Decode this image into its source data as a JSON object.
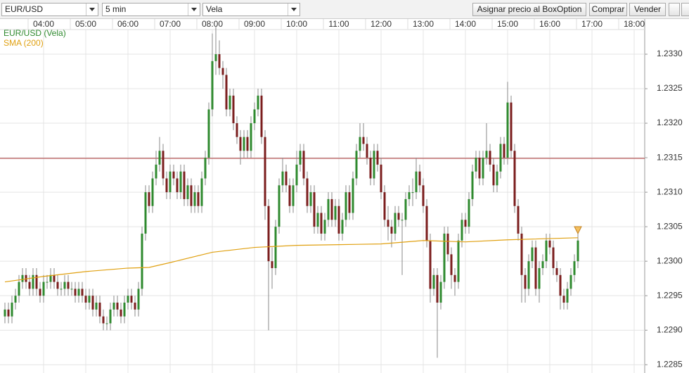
{
  "toolbar": {
    "symbol": "EUR/USD",
    "interval": "5 min",
    "chart_style": "Vela",
    "buttons": [
      "Asignar precio al BoxOption",
      "Comprar",
      "Vender"
    ]
  },
  "chart_data": {
    "type": "candlestick",
    "xlim": [
      "02:58",
      "18:15"
    ],
    "xticks": [
      "04:00",
      "05:00",
      "06:00",
      "07:00",
      "08:00",
      "09:00",
      "10:00",
      "11:00",
      "12:00",
      "13:00",
      "14:00",
      "15:00",
      "16:00",
      "17:00",
      "18:00"
    ],
    "ylim": [
      1.22838,
      1.23351
    ],
    "yticks": [
      1.2285,
      {
        "value": 1.229,
        "label": "1.2290"
      },
      1.2295,
      {
        "value": 1.23,
        "label": "1.2300"
      },
      1.2305,
      {
        "value": 1.231,
        "label": "1.2310"
      },
      1.2315,
      {
        "value": 1.232,
        "label": "1.2320"
      },
      1.2325,
      {
        "value": 1.233,
        "label": "1.2330"
      }
    ],
    "grid": true,
    "hline": {
      "value": 1.23149,
      "color": "#a83232"
    },
    "x": [
      "03:05",
      "03:10",
      "03:15",
      "03:20",
      "03:25",
      "03:30",
      "03:35",
      "03:40",
      "03:45",
      "03:50",
      "03:55",
      "04:00",
      "04:05",
      "04:10",
      "04:15",
      "04:20",
      "04:25",
      "04:30",
      "04:35",
      "04:40",
      "04:45",
      "04:50",
      "04:55",
      "05:00",
      "05:05",
      "05:10",
      "05:15",
      "05:20",
      "05:25",
      "05:30",
      "05:35",
      "05:40",
      "05:45",
      "05:50",
      "05:55",
      "06:00",
      "06:05",
      "06:10",
      "06:15",
      "06:20",
      "06:25",
      "06:30",
      "06:35",
      "06:40",
      "06:45",
      "06:50",
      "06:55",
      "07:00",
      "07:05",
      "07:10",
      "07:15",
      "07:20",
      "07:25",
      "07:30",
      "07:35",
      "07:40",
      "07:45",
      "07:50",
      "07:55",
      "08:00",
      "08:05",
      "08:10",
      "08:15",
      "08:20",
      "08:25",
      "08:30",
      "08:35",
      "08:40",
      "08:45",
      "08:50",
      "08:55",
      "09:00",
      "09:05",
      "09:10",
      "09:15",
      "09:20",
      "09:25",
      "09:30",
      "09:35",
      "09:40",
      "09:45",
      "09:50",
      "09:55",
      "10:00",
      "10:05",
      "10:10",
      "10:15",
      "10:20",
      "10:25",
      "10:30",
      "10:35",
      "10:40",
      "10:45",
      "10:50",
      "10:55",
      "11:00",
      "11:05",
      "11:10",
      "11:15",
      "11:20",
      "11:25",
      "11:30",
      "11:35",
      "11:40",
      "11:45",
      "11:50",
      "11:55",
      "12:00",
      "12:05",
      "12:10",
      "12:15",
      "12:20",
      "12:25",
      "12:30",
      "12:35",
      "12:40",
      "12:45",
      "12:50",
      "12:55",
      "13:00",
      "13:05",
      "13:10",
      "13:15",
      "13:20",
      "13:25",
      "13:30",
      "13:35",
      "13:40",
      "13:45",
      "13:50",
      "13:55",
      "14:00",
      "14:05",
      "14:10",
      "14:15",
      "14:20",
      "14:25",
      "14:30",
      "14:35",
      "14:40",
      "14:45",
      "14:50",
      "14:55",
      "15:00",
      "15:05",
      "15:10",
      "15:15",
      "15:20",
      "15:25",
      "15:30",
      "15:35",
      "15:40",
      "15:45",
      "15:50",
      "15:55",
      "16:00",
      "16:05",
      "16:10",
      "16:15",
      "16:20",
      "16:25",
      "16:30",
      "16:35",
      "16:40"
    ],
    "series": [
      {
        "name": "EUR/USD (Vela)",
        "type": "candlestick",
        "color": "#2f8a2f",
        "down_color": "#7b1e1e",
        "open": [
          1.2292,
          1.2293,
          1.2292,
          1.2294,
          1.2295,
          1.2297,
          1.2298,
          1.2297,
          1.2296,
          1.2298,
          1.2296,
          1.2295,
          1.2297,
          1.2297,
          1.2298,
          1.2297,
          1.2296,
          1.2296,
          1.2297,
          1.2296,
          1.2296,
          1.2295,
          1.2296,
          1.2295,
          1.2294,
          1.2295,
          1.2293,
          1.2294,
          1.2292,
          1.2291,
          1.2291,
          1.2293,
          1.2294,
          1.2293,
          1.2292,
          1.2294,
          1.2295,
          1.2294,
          1.2293,
          1.2296,
          1.2304,
          1.231,
          1.2308,
          1.2312,
          1.2314,
          1.2316,
          1.2312,
          1.231,
          1.2313,
          1.2312,
          1.231,
          1.2313,
          1.2309,
          1.2311,
          1.2308,
          1.231,
          1.2308,
          1.2312,
          1.2315,
          1.2322,
          1.2329,
          1.233,
          1.2328,
          1.2327,
          1.2322,
          1.2324,
          1.232,
          1.2318,
          1.2316,
          1.2318,
          1.2316,
          1.232,
          1.2322,
          1.2324,
          1.2318,
          1.2308,
          1.23,
          1.2299,
          1.2305,
          1.2311,
          1.2313,
          1.2311,
          1.2308,
          1.2311,
          1.2314,
          1.2316,
          1.2312,
          1.2308,
          1.231,
          1.2305,
          1.2307,
          1.2304,
          1.2306,
          1.2309,
          1.2306,
          1.2308,
          1.2304,
          1.2306,
          1.231,
          1.2307,
          1.2312,
          1.2316,
          1.2318,
          1.2317,
          1.2315,
          1.2312,
          1.2316,
          1.2314,
          1.231,
          1.2306,
          1.2305,
          1.2304,
          1.2307,
          1.2306,
          1.2306,
          1.2309,
          1.231,
          1.231,
          1.2313,
          1.2311,
          1.2308,
          1.2303,
          1.2296,
          1.2298,
          1.2294,
          1.2297,
          1.2304,
          1.2301,
          1.2298,
          1.2297,
          1.2303,
          1.2306,
          1.2305,
          1.2309,
          1.2313,
          1.2315,
          1.2312,
          1.2315,
          1.2316,
          1.2314,
          1.2311,
          1.2313,
          1.2317,
          1.2315,
          1.2323,
          1.2316,
          1.2308,
          1.2304,
          1.2298,
          1.2296,
          1.23,
          1.2302,
          1.2296,
          1.2299,
          1.23,
          1.2303,
          1.2302,
          1.2299,
          1.2298,
          1.2295,
          1.2294,
          1.2296,
          1.2298,
          1.23
        ],
        "high": [
          1.2294,
          1.2294,
          1.2295,
          1.2296,
          1.2298,
          1.2299,
          1.2299,
          1.2298,
          1.2299,
          1.2299,
          1.2297,
          1.2298,
          1.2298,
          1.2299,
          1.2299,
          1.2298,
          1.2297,
          1.2298,
          1.2298,
          1.2297,
          1.2297,
          1.2297,
          1.2297,
          1.2296,
          1.2296,
          1.2296,
          1.2295,
          1.2295,
          1.2293,
          1.2292,
          1.2294,
          1.2295,
          1.2295,
          1.2294,
          1.2295,
          1.2296,
          1.2296,
          1.2295,
          1.2297,
          1.2305,
          1.2311,
          1.2311,
          1.2313,
          1.2316,
          1.2318,
          1.2317,
          1.2313,
          1.2314,
          1.2314,
          1.2313,
          1.2314,
          1.2314,
          1.2312,
          1.2312,
          1.2311,
          1.2311,
          1.2313,
          1.2316,
          1.2323,
          1.2333,
          1.2334,
          1.2332,
          1.2329,
          1.2328,
          1.2325,
          1.2325,
          1.2321,
          1.2319,
          1.2319,
          1.2319,
          1.2321,
          1.2323,
          1.2325,
          1.2325,
          1.2319,
          1.2309,
          1.2302,
          1.2306,
          1.2312,
          1.2315,
          1.2314,
          1.2312,
          1.2312,
          1.2316,
          1.2317,
          1.2317,
          1.2313,
          1.2311,
          1.2311,
          1.2308,
          1.2308,
          1.2307,
          1.231,
          1.231,
          1.2309,
          1.2309,
          1.2307,
          1.2311,
          1.2311,
          1.2313,
          1.2317,
          1.232,
          1.232,
          1.2318,
          1.2316,
          1.2317,
          1.2317,
          1.2315,
          1.2311,
          1.2308,
          1.2306,
          1.2308,
          1.2308,
          1.2307,
          1.231,
          1.2311,
          1.2312,
          1.2315,
          1.2314,
          1.2312,
          1.2309,
          1.2304,
          1.2299,
          1.2299,
          1.2298,
          1.2305,
          1.2305,
          1.2302,
          1.2299,
          1.2304,
          1.2307,
          1.2307,
          1.231,
          1.2314,
          1.2316,
          1.2316,
          1.2316,
          1.232,
          1.2317,
          1.2315,
          1.2314,
          1.2318,
          1.2318,
          1.2326,
          1.2324,
          1.2317,
          1.2309,
          1.2305,
          1.2299,
          1.2301,
          1.2303,
          1.2303,
          1.23,
          1.2301,
          1.2304,
          1.2304,
          1.2303,
          1.23,
          1.2299,
          1.2296,
          1.2297,
          1.2299,
          1.2301,
          1.2304
        ],
        "low": [
          1.2291,
          1.2291,
          1.2291,
          1.2293,
          1.2294,
          1.2296,
          1.2296,
          1.2295,
          1.2295,
          1.2295,
          1.2294,
          1.2294,
          1.2296,
          1.2296,
          1.2296,
          1.2295,
          1.2295,
          1.2295,
          1.2295,
          1.2295,
          1.2294,
          1.2294,
          1.2294,
          1.2293,
          1.2293,
          1.2292,
          1.2292,
          1.2291,
          1.229,
          1.229,
          1.229,
          1.2292,
          1.2292,
          1.2291,
          1.2291,
          1.2293,
          1.2293,
          1.2292,
          1.2292,
          1.2295,
          1.2303,
          1.2307,
          1.2307,
          1.2311,
          1.2313,
          1.2311,
          1.2309,
          1.2309,
          1.2311,
          1.2309,
          1.2309,
          1.2308,
          1.2308,
          1.2307,
          1.2307,
          1.2307,
          1.2307,
          1.2311,
          1.2314,
          1.2321,
          1.2327,
          1.2327,
          1.2325,
          1.2321,
          1.2321,
          1.2319,
          1.2317,
          1.2314,
          1.2315,
          1.2315,
          1.2315,
          1.2319,
          1.2321,
          1.2317,
          1.2306,
          1.229,
          1.2296,
          1.2298,
          1.2304,
          1.231,
          1.231,
          1.2307,
          1.2307,
          1.231,
          1.2313,
          1.2311,
          1.2307,
          1.2307,
          1.2304,
          1.2304,
          1.2303,
          1.2303,
          1.2305,
          1.2305,
          1.2305,
          1.2303,
          1.2303,
          1.2305,
          1.2306,
          1.2306,
          1.2311,
          1.2315,
          1.2316,
          1.2314,
          1.2311,
          1.2311,
          1.2313,
          1.2309,
          1.2305,
          1.2303,
          1.2302,
          1.2303,
          1.2305,
          1.2298,
          1.2305,
          1.2308,
          1.2308,
          1.2309,
          1.231,
          1.2307,
          1.2302,
          1.2294,
          1.2295,
          1.2286,
          1.2293,
          1.2296,
          1.23,
          1.2296,
          1.2295,
          1.2296,
          1.2302,
          1.2304,
          1.2304,
          1.2308,
          1.2312,
          1.2311,
          1.2311,
          1.2314,
          1.2313,
          1.231,
          1.231,
          1.2312,
          1.2314,
          1.2314,
          1.2315,
          1.2307,
          1.2303,
          1.2294,
          1.2294,
          1.2295,
          1.2299,
          1.2295,
          1.2294,
          1.2298,
          1.2299,
          1.2301,
          1.2298,
          1.2297,
          1.2293,
          1.2293,
          1.2293,
          1.2295,
          1.2297,
          1.2299
        ],
        "close": [
          1.2293,
          1.2292,
          1.2294,
          1.2295,
          1.2297,
          1.2298,
          1.2297,
          1.2296,
          1.2298,
          1.2296,
          1.2295,
          1.2297,
          1.2297,
          1.2298,
          1.2297,
          1.2296,
          1.2296,
          1.2297,
          1.2296,
          1.2296,
          1.2295,
          1.2296,
          1.2295,
          1.2294,
          1.2295,
          1.2293,
          1.2294,
          1.2292,
          1.2291,
          1.2291,
          1.2293,
          1.2294,
          1.2293,
          1.2292,
          1.2294,
          1.2295,
          1.2294,
          1.2293,
          1.2296,
          1.2304,
          1.231,
          1.2308,
          1.2312,
          1.2314,
          1.2316,
          1.2312,
          1.231,
          1.2313,
          1.2312,
          1.231,
          1.2313,
          1.2309,
          1.2311,
          1.2308,
          1.231,
          1.2308,
          1.2312,
          1.2315,
          1.2322,
          1.2329,
          1.233,
          1.2328,
          1.2327,
          1.2322,
          1.2324,
          1.232,
          1.2318,
          1.2316,
          1.2318,
          1.2316,
          1.232,
          1.2322,
          1.2324,
          1.2318,
          1.2308,
          1.23,
          1.2299,
          1.2305,
          1.2311,
          1.2313,
          1.2311,
          1.2308,
          1.2311,
          1.2314,
          1.2316,
          1.2312,
          1.2308,
          1.231,
          1.2305,
          1.2307,
          1.2304,
          1.2306,
          1.2309,
          1.2306,
          1.2308,
          1.2304,
          1.2306,
          1.231,
          1.2307,
          1.2312,
          1.2316,
          1.2318,
          1.2317,
          1.2315,
          1.2312,
          1.2316,
          1.2314,
          1.231,
          1.2306,
          1.2305,
          1.2304,
          1.2307,
          1.2306,
          1.2306,
          1.2309,
          1.231,
          1.231,
          1.2313,
          1.2311,
          1.2308,
          1.2303,
          1.2296,
          1.2298,
          1.2294,
          1.2297,
          1.2304,
          1.2301,
          1.2298,
          1.2297,
          1.2303,
          1.2306,
          1.2305,
          1.2309,
          1.2313,
          1.2315,
          1.2312,
          1.2315,
          1.2316,
          1.2314,
          1.2311,
          1.2313,
          1.2317,
          1.2315,
          1.2323,
          1.2316,
          1.2308,
          1.2304,
          1.2298,
          1.2296,
          1.23,
          1.2302,
          1.2296,
          1.2299,
          1.23,
          1.2303,
          1.2302,
          1.2299,
          1.2298,
          1.2295,
          1.2294,
          1.2296,
          1.2298,
          1.23,
          1.2303
        ]
      },
      {
        "name": "SMA (200)",
        "type": "line",
        "color": "#e0a010",
        "x": [
          "03:05",
          "04:00",
          "05:00",
          "06:00",
          "06:30",
          "07:00",
          "08:00",
          "09:00",
          "10:00",
          "11:00",
          "12:00",
          "13:00",
          "14:00",
          "15:00",
          "16:40"
        ],
        "values": [
          1.2297,
          1.22978,
          1.22985,
          1.2299,
          1.22991,
          1.22998,
          1.23013,
          1.2302,
          1.23023,
          1.23024,
          1.23025,
          1.2303,
          1.23028,
          1.23031,
          1.23034
        ]
      }
    ]
  }
}
